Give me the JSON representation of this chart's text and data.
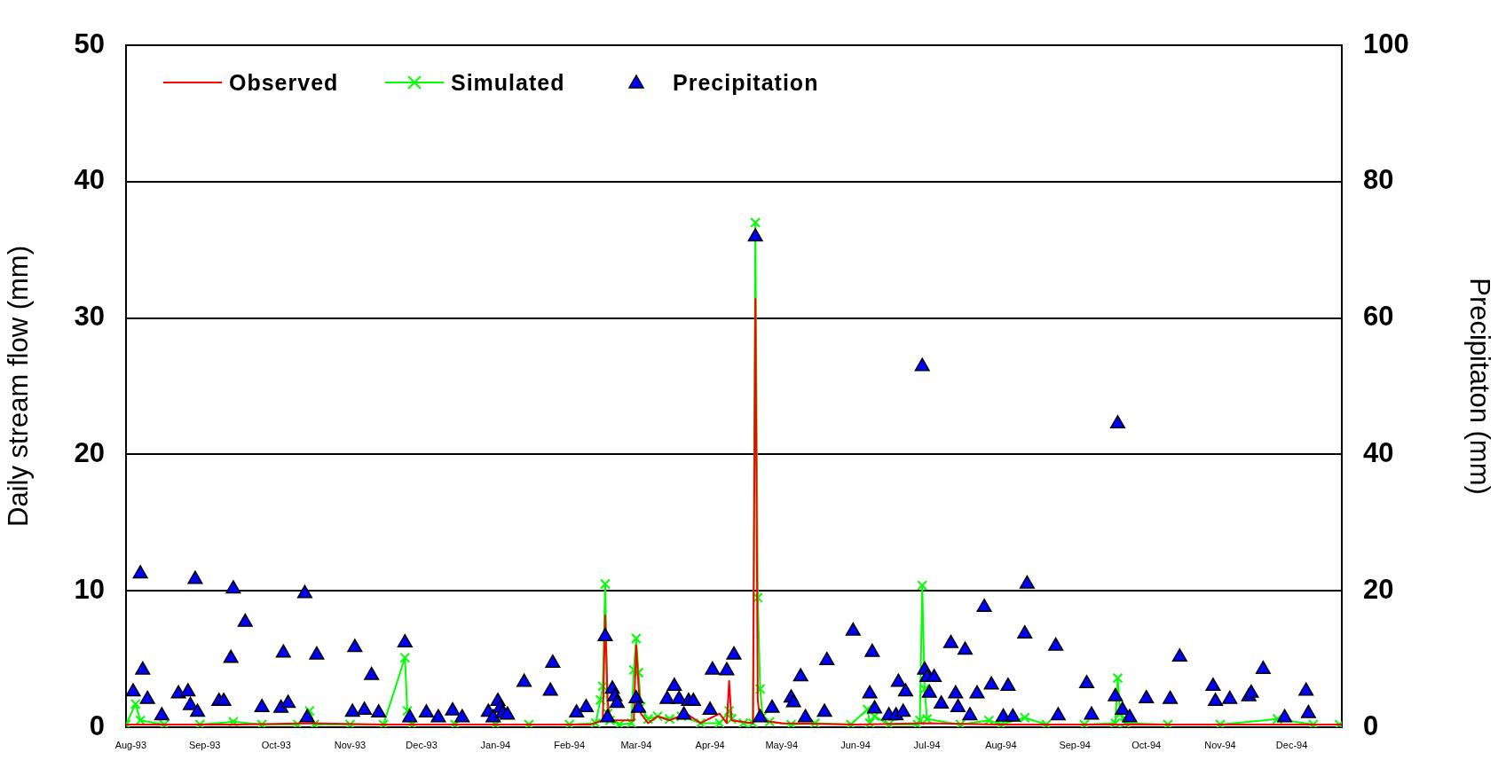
{
  "chart_data": {
    "type": "line",
    "ylabel": "Daily stream flow (mm)",
    "y2label": "Precipitaton (mm)",
    "xlim": [
      "1993-07-30",
      "1994-12-22"
    ],
    "xticks": [
      {
        "value": "1993-08-01",
        "label": "Aug-93"
      },
      {
        "value": "1993-09-01",
        "label": "Sep-93"
      },
      {
        "value": "1993-10-01",
        "label": "Oct-93"
      },
      {
        "value": "1993-11-01",
        "label": "Nov-93"
      },
      {
        "value": "1993-12-01",
        "label": "Dec-93"
      },
      {
        "value": "1994-01-01",
        "label": "Jan-94"
      },
      {
        "value": "1994-02-01",
        "label": "Feb-94"
      },
      {
        "value": "1994-03-01",
        "label": "Mar-94"
      },
      {
        "value": "1994-04-01",
        "label": "Apr-94"
      },
      {
        "value": "1994-05-01",
        "label": "May-94"
      },
      {
        "value": "1994-06-01",
        "label": "Jun-94"
      },
      {
        "value": "1994-07-01",
        "label": "Jul-94"
      },
      {
        "value": "1994-08-01",
        "label": "Aug-94"
      },
      {
        "value": "1994-09-01",
        "label": "Sep-94"
      },
      {
        "value": "1994-10-01",
        "label": "Oct-94"
      },
      {
        "value": "1994-11-01",
        "label": "Nov-94"
      },
      {
        "value": "1994-12-01",
        "label": "Dec-94"
      }
    ],
    "ylim": [
      0,
      50
    ],
    "yticks": [
      0,
      10,
      20,
      30,
      40,
      50
    ],
    "y2lim": [
      0,
      100
    ],
    "y2ticks": [
      0,
      20,
      40,
      60,
      80,
      100
    ],
    "grid": "y",
    "legend": "top left",
    "series": [
      {
        "name": "Observed",
        "type": "line",
        "color": "#ff0000",
        "marker": "none",
        "x": [
          "1993-07-30",
          "1993-08-15",
          "1993-09-15",
          "1993-10-15",
          "1993-11-15",
          "1993-12-15",
          "1994-01-15",
          "1994-02-10",
          "1994-02-15",
          "1994-02-16",
          "1994-02-17",
          "1994-02-18",
          "1994-02-28",
          "1994-03-01",
          "1994-03-02",
          "1994-03-03",
          "1994-03-06",
          "1994-03-10",
          "1994-03-15",
          "1994-03-22",
          "1994-03-28",
          "1994-04-05",
          "1994-04-08",
          "1994-04-09",
          "1994-04-10",
          "1994-04-19",
          "1994-04-20",
          "1994-04-21",
          "1994-04-22",
          "1994-05-01",
          "1994-06-01",
          "1994-07-01",
          "1994-08-01",
          "1994-09-01",
          "1994-10-01",
          "1994-11-01",
          "1994-12-01",
          "1994-12-22"
        ],
        "values": [
          0.2,
          0.2,
          0.2,
          0.3,
          0.2,
          0.2,
          0.2,
          0.2,
          0.5,
          8.2,
          2.0,
          0.5,
          0.5,
          6.0,
          3.0,
          1.0,
          0.3,
          0.8,
          0.5,
          1.0,
          0.3,
          1.0,
          0.3,
          3.4,
          0.5,
          0.3,
          31.4,
          2.0,
          0.5,
          0.3,
          0.2,
          0.3,
          0.2,
          0.2,
          0.2,
          0.2,
          0.2,
          0.2
        ]
      },
      {
        "name": "Simulated",
        "type": "line",
        "color": "#00ff00",
        "marker": "cross",
        "x": [
          "1993-07-30",
          "1993-08-03",
          "1993-08-05",
          "1993-08-15",
          "1993-08-30",
          "1993-09-13",
          "1993-09-25",
          "1993-10-10",
          "1993-10-15",
          "1993-10-17",
          "1993-11-01",
          "1993-11-15",
          "1993-11-24",
          "1993-11-25",
          "1993-11-27",
          "1993-12-15",
          "1994-01-01",
          "1994-01-15",
          "1994-02-01",
          "1994-02-12",
          "1994-02-14",
          "1994-02-15",
          "1994-02-16",
          "1994-02-17",
          "1994-02-18",
          "1994-02-22",
          "1994-02-27",
          "1994-02-28",
          "1994-03-01",
          "1994-03-02",
          "1994-03-03",
          "1994-03-06",
          "1994-03-10",
          "1994-03-15",
          "1994-03-20",
          "1994-03-28",
          "1994-04-05",
          "1994-04-09",
          "1994-04-10",
          "1994-04-15",
          "1994-04-19",
          "1994-04-20",
          "1994-04-21",
          "1994-04-22",
          "1994-04-23",
          "1994-04-26",
          "1994-05-05",
          "1994-05-15",
          "1994-05-30",
          "1994-06-06",
          "1994-06-07",
          "1994-06-09",
          "1994-06-15",
          "1994-06-27",
          "1994-06-28",
          "1994-06-29",
          "1994-06-30",
          "1994-07-01",
          "1994-07-15",
          "1994-07-27",
          "1994-08-01",
          "1994-08-11",
          "1994-08-20",
          "1994-09-05",
          "1994-09-18",
          "1994-09-19",
          "1994-09-20",
          "1994-09-22",
          "1994-10-10",
          "1994-11-01",
          "1994-11-25",
          "1994-12-10",
          "1994-12-21"
        ],
        "values": [
          0.2,
          1.7,
          0.5,
          0.2,
          0.2,
          0.4,
          0.2,
          0.2,
          1.2,
          0.2,
          0.2,
          0.2,
          5.1,
          1.2,
          0.2,
          0.2,
          0.2,
          0.2,
          0.2,
          0.3,
          2.0,
          3.0,
          10.5,
          1.0,
          0.5,
          0.2,
          0.3,
          4.2,
          6.5,
          4.0,
          1.5,
          0.6,
          0.8,
          0.6,
          0.8,
          0.3,
          0.3,
          1.2,
          0.6,
          0.3,
          0.3,
          37.0,
          9.5,
          2.8,
          0.8,
          0.4,
          0.2,
          0.3,
          0.2,
          1.3,
          0.3,
          0.8,
          0.2,
          0.2,
          0.5,
          10.4,
          2.8,
          0.6,
          0.2,
          0.5,
          0.2,
          0.7,
          0.2,
          0.2,
          0.3,
          3.6,
          1.0,
          0.3,
          0.2,
          0.2,
          0.6,
          0.2,
          0.2
        ]
      },
      {
        "name": "Precipitation",
        "type": "scatter",
        "axis": "y2",
        "color": "#0000ff",
        "marker": "triangle",
        "x": [
          "1993-08-02",
          "1993-08-05",
          "1993-08-06",
          "1993-08-08",
          "1993-08-14",
          "1993-08-21",
          "1993-08-25",
          "1993-08-26",
          "1993-08-28",
          "1993-08-29",
          "1993-09-07",
          "1993-09-09",
          "1993-09-12",
          "1993-09-13",
          "1993-09-18",
          "1993-09-25",
          "1993-10-03",
          "1993-10-04",
          "1993-10-06",
          "1993-10-13",
          "1993-10-14",
          "1993-10-18",
          "1993-11-02",
          "1993-11-03",
          "1993-11-07",
          "1993-11-10",
          "1993-11-13",
          "1993-11-24",
          "1993-11-26",
          "1993-12-03",
          "1993-12-08",
          "1993-12-14",
          "1993-12-18",
          "1993-12-29",
          "1993-12-31",
          "1994-01-02",
          "1994-01-03",
          "1994-01-04",
          "1994-01-06",
          "1994-01-13",
          "1994-01-24",
          "1994-01-25",
          "1994-02-04",
          "1994-02-08",
          "1994-02-16",
          "1994-02-17",
          "1994-02-19",
          "1994-02-20",
          "1994-02-21",
          "1994-03-01",
          "1994-03-02",
          "1994-03-14",
          "1994-03-17",
          "1994-03-19",
          "1994-03-21",
          "1994-03-23",
          "1994-03-25",
          "1994-04-01",
          "1994-04-02",
          "1994-04-08",
          "1994-04-11",
          "1994-04-20",
          "1994-04-22",
          "1994-04-27",
          "1994-05-05",
          "1994-05-06",
          "1994-05-09",
          "1994-05-11",
          "1994-05-19",
          "1994-05-20",
          "1994-05-31",
          "1994-06-07",
          "1994-06-08",
          "1994-06-09",
          "1994-06-15",
          "1994-06-18",
          "1994-06-19",
          "1994-06-21",
          "1994-06-22",
          "1994-06-29",
          "1994-06-30",
          "1994-07-01",
          "1994-07-02",
          "1994-07-04",
          "1994-07-07",
          "1994-07-11",
          "1994-07-13",
          "1994-07-14",
          "1994-07-17",
          "1994-07-19",
          "1994-07-22",
          "1994-07-25",
          "1994-07-28",
          "1994-08-02",
          "1994-08-04",
          "1994-08-06",
          "1994-08-11",
          "1994-08-12",
          "1994-08-24",
          "1994-08-25",
          "1994-09-06",
          "1994-09-08",
          "1994-09-18",
          "1994-09-19",
          "1994-09-21",
          "1994-09-24",
          "1994-10-01",
          "1994-10-11",
          "1994-10-15",
          "1994-10-29",
          "1994-10-30",
          "1994-11-05",
          "1994-11-13",
          "1994-11-14",
          "1994-11-19",
          "1994-11-28",
          "1994-12-07",
          "1994-12-08"
        ],
        "values": [
          5.2,
          22.5,
          8.4,
          4.1,
          1.7,
          4.9,
          5.2,
          3.2,
          21.7,
          2.2,
          3.8,
          3.8,
          10.1,
          20.3,
          15.4,
          2.9,
          2.8,
          10.9,
          3.5,
          19.6,
          1.4,
          10.6,
          2.2,
          11.7,
          2.5,
          7.6,
          2.1,
          12.4,
          1.4,
          2.1,
          1.4,
          2.4,
          1.4,
          2.2,
          1.4,
          3.8,
          2.8,
          2.0,
          1.8,
          6.6,
          5.3,
          9.4,
          2.1,
          2.9,
          13.3,
          1.4,
          5.6,
          4.5,
          3.5,
          4.2,
          2.8,
          4.1,
          6.0,
          4.1,
          1.8,
          3.8,
          3.8,
          2.5,
          8.4,
          8.3,
          10.6,
          71.9,
          1.4,
          2.8,
          4.3,
          3.6,
          7.4,
          1.4,
          2.2,
          9.8,
          14.1,
          4.9,
          11.0,
          2.7,
          1.7,
          1.7,
          6.6,
          2.2,
          5.2,
          52.9,
          8.4,
          7.3,
          5.0,
          7.3,
          3.4,
          12.3,
          4.9,
          2.9,
          11.3,
          1.7,
          4.9,
          17.6,
          6.2,
          1.5,
          6.0,
          1.5,
          13.7,
          21.0,
          11.9,
          1.7,
          6.4,
          1.8,
          4.5,
          44.5,
          2.5,
          1.4,
          4.2,
          4.1,
          10.3,
          6.0,
          3.8,
          4.1,
          4.5,
          5.0,
          8.5,
          1.4,
          5.3,
          2.0
        ]
      }
    ]
  }
}
